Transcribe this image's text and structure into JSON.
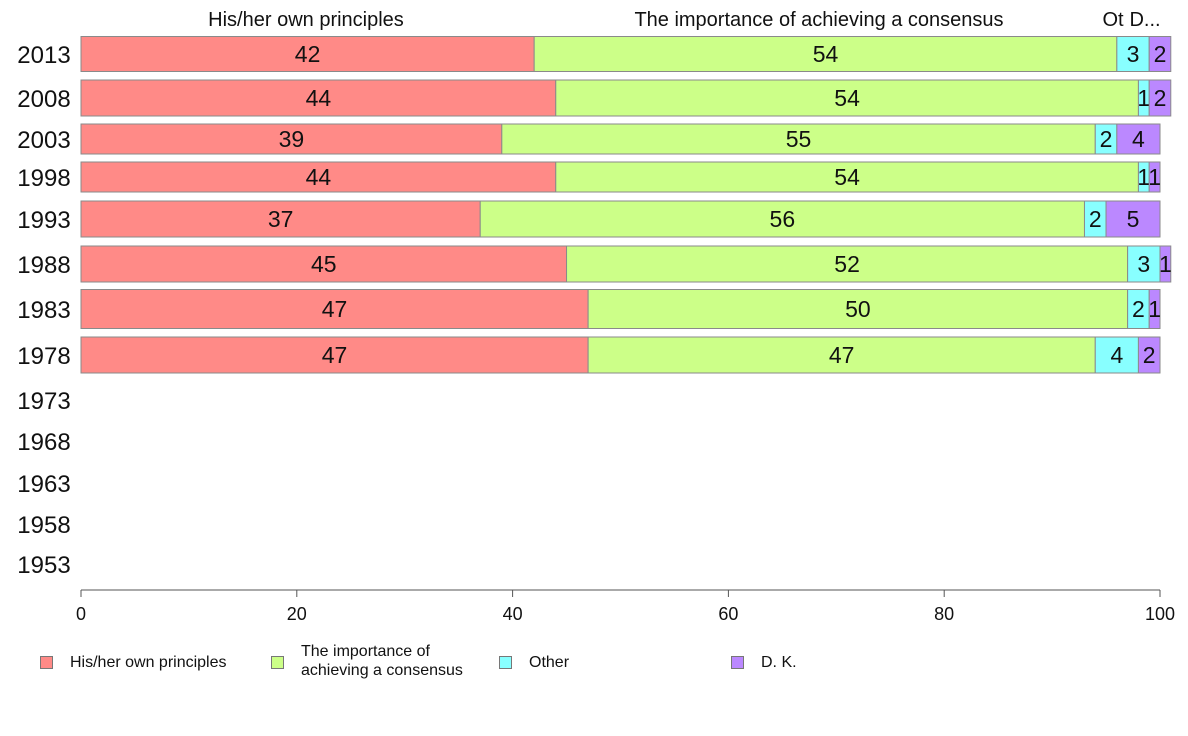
{
  "chart_data": {
    "type": "bar",
    "orientation": "horizontal",
    "stacked": true,
    "categories": [
      "2013",
      "2008",
      "2003",
      "1998",
      "1993",
      "1988",
      "1983",
      "1978",
      "1973",
      "1968",
      "1963",
      "1958",
      "1953"
    ],
    "series": [
      {
        "name": "His/her own principles",
        "color": "#ff8a87",
        "values": [
          42,
          44,
          39,
          44,
          37,
          45,
          47,
          47,
          null,
          null,
          null,
          null,
          null
        ]
      },
      {
        "name": "The importance of achieving a consensus",
        "color": "#ccff88",
        "values": [
          54,
          54,
          55,
          54,
          56,
          52,
          50,
          47,
          null,
          null,
          null,
          null,
          null
        ]
      },
      {
        "name": "Other",
        "color": "#88ffff",
        "values": [
          3,
          1,
          2,
          1,
          2,
          3,
          2,
          4,
          null,
          null,
          null,
          null,
          null
        ]
      },
      {
        "name": "D. K.",
        "color": "#bb88ff",
        "values": [
          2,
          2,
          4,
          1,
          5,
          1,
          1,
          2,
          null,
          null,
          null,
          null,
          null
        ]
      }
    ],
    "top_labels": [
      "His/her own principles",
      "The importance of achieving a consensus",
      "Ot",
      "D..."
    ],
    "x_ticks": [
      0,
      20,
      40,
      60,
      80,
      100
    ],
    "xlim": [
      0,
      100
    ],
    "legend": {
      "placement": "bottom",
      "items": [
        {
          "label": "His/her own principles",
          "color": "#ff8a87"
        },
        {
          "label": "The importance of\nachieving a consensus",
          "color": "#ccff88"
        },
        {
          "label": "Other",
          "color": "#88ffff"
        },
        {
          "label": "D. K.",
          "color": "#bb88ff"
        }
      ]
    }
  }
}
